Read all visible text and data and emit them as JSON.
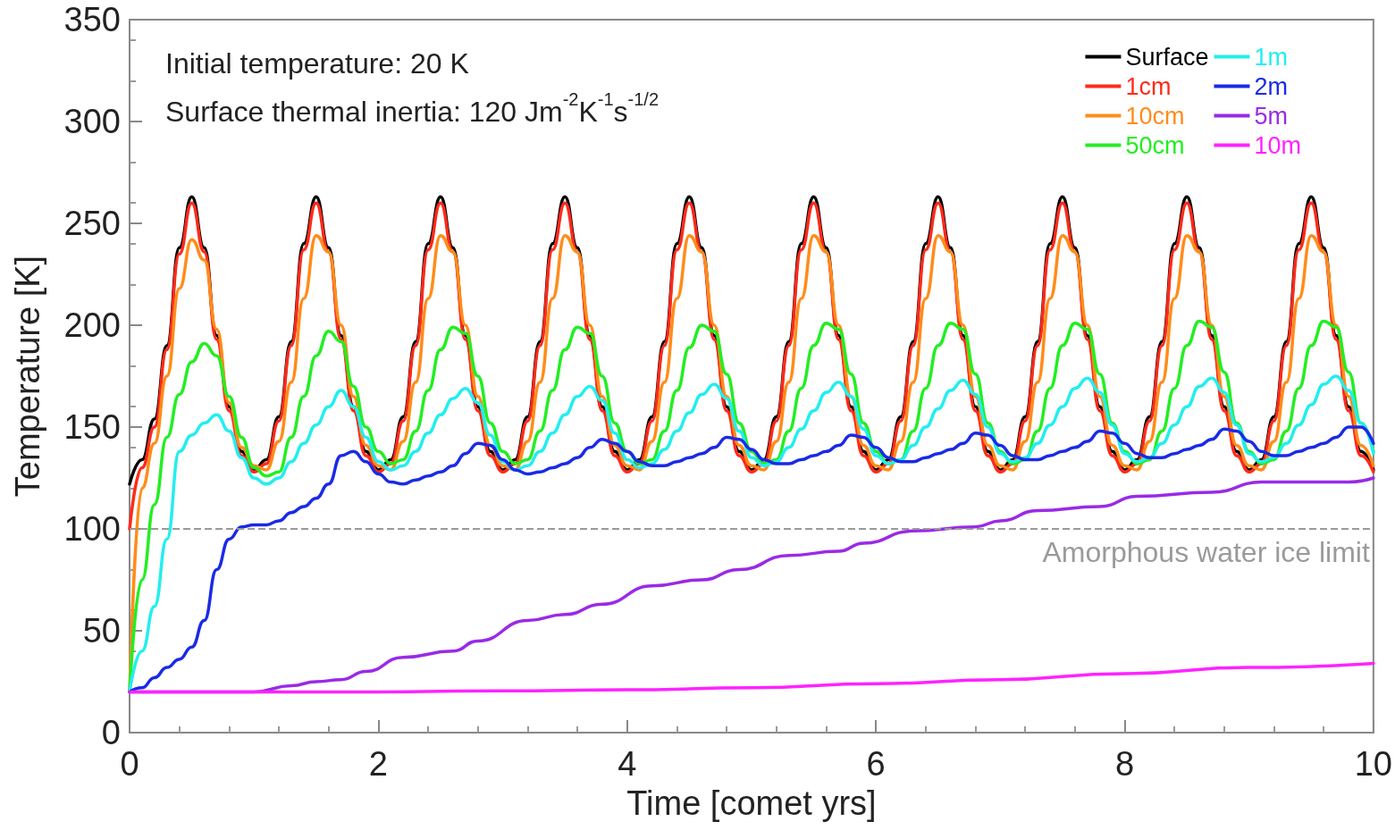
{
  "chart_data": {
    "type": "line",
    "xlabel": "Time [comet yrs]",
    "ylabel": "Temperature [K]",
    "annotations": [
      "Initial temperature: 20 K",
      "Surface thermal inertia: 120 Jm$^{-2}$K$^{-1}$s$^{-1/2}$"
    ],
    "x": [
      0,
      0.1,
      0.2,
      0.3,
      0.4,
      0.5,
      0.6,
      0.7,
      0.8,
      0.9,
      1,
      1.1,
      1.2,
      1.3,
      1.4,
      1.5,
      1.6,
      1.7,
      1.8,
      1.9,
      2,
      2.1,
      2.2,
      2.3,
      2.4,
      2.5,
      2.6,
      2.7,
      2.8,
      2.9,
      3,
      3.1,
      3.2,
      3.3,
      3.4,
      3.5,
      3.6,
      3.7,
      3.8,
      3.9,
      4,
      4.1,
      4.2,
      4.3,
      4.4,
      4.5,
      4.6,
      4.7,
      4.8,
      4.9,
      5,
      5.1,
      5.2,
      5.3,
      5.4,
      5.5,
      5.6,
      5.7,
      5.8,
      5.9,
      6,
      6.1,
      6.2,
      6.3,
      6.4,
      6.5,
      6.6,
      6.7,
      6.8,
      6.9,
      7,
      7.1,
      7.2,
      7.3,
      7.4,
      7.5,
      7.6,
      7.7,
      7.8,
      7.9,
      8,
      8.1,
      8.2,
      8.3,
      8.4,
      8.5,
      8.6,
      8.7,
      8.8,
      8.9,
      9,
      9.1,
      9.2,
      9.3,
      9.4,
      9.5,
      9.6,
      9.7,
      9.8,
      9.9,
      10
    ],
    "series": [
      {
        "name": "Surface",
        "color": "#000000",
        "values": [
          122,
          134,
          154,
          190,
          238,
          263,
          238,
          195,
          160,
          138,
          129,
          134,
          155,
          192,
          240,
          263,
          238,
          195,
          160,
          138,
          129,
          134,
          155,
          192,
          240,
          263,
          238,
          195,
          160,
          138,
          129,
          134,
          155,
          192,
          240,
          263,
          238,
          195,
          160,
          138,
          129,
          134,
          155,
          192,
          240,
          263,
          238,
          195,
          160,
          138,
          129,
          134,
          155,
          192,
          240,
          263,
          238,
          195,
          160,
          138,
          129,
          134,
          155,
          192,
          240,
          263,
          238,
          195,
          160,
          138,
          129,
          134,
          155,
          192,
          240,
          263,
          238,
          195,
          160,
          138,
          129,
          134,
          155,
          192,
          240,
          263,
          238,
          195,
          160,
          138,
          129,
          134,
          155,
          192,
          240,
          263,
          238,
          195,
          160,
          138,
          129
        ]
      },
      {
        "name": "1cm",
        "color": "#ff2a1a",
        "values": [
          100,
          130,
          150,
          188,
          235,
          260,
          236,
          193,
          158,
          136,
          128,
          132,
          153,
          190,
          237,
          260,
          236,
          193,
          158,
          136,
          128,
          132,
          153,
          190,
          237,
          260,
          236,
          193,
          158,
          136,
          128,
          132,
          153,
          190,
          237,
          260,
          236,
          193,
          158,
          136,
          128,
          132,
          153,
          190,
          237,
          260,
          236,
          193,
          158,
          136,
          128,
          132,
          153,
          190,
          237,
          260,
          236,
          193,
          158,
          136,
          128,
          132,
          153,
          190,
          237,
          260,
          236,
          193,
          158,
          136,
          128,
          132,
          153,
          190,
          237,
          260,
          236,
          193,
          158,
          136,
          128,
          132,
          153,
          190,
          237,
          260,
          236,
          193,
          158,
          136,
          128,
          132,
          153,
          190,
          237,
          260,
          236,
          193,
          158,
          136,
          128
        ]
      },
      {
        "name": "10cm",
        "color": "#ff8c1a",
        "values": [
          20,
          120,
          142,
          175,
          218,
          242,
          232,
          198,
          162,
          140,
          131,
          129,
          143,
          172,
          213,
          244,
          236,
          200,
          165,
          141,
          131,
          129,
          143,
          172,
          213,
          244,
          236,
          200,
          165,
          141,
          131,
          129,
          143,
          172,
          213,
          244,
          236,
          200,
          165,
          141,
          131,
          129,
          143,
          172,
          213,
          244,
          236,
          200,
          165,
          141,
          131,
          129,
          143,
          172,
          213,
          244,
          236,
          200,
          165,
          141,
          131,
          129,
          143,
          172,
          213,
          244,
          236,
          200,
          165,
          141,
          131,
          129,
          143,
          172,
          213,
          244,
          236,
          200,
          165,
          141,
          131,
          129,
          143,
          172,
          213,
          244,
          236,
          200,
          165,
          141,
          131,
          129,
          143,
          172,
          213,
          244,
          236,
          200,
          165,
          141,
          131
        ]
      },
      {
        "name": "50cm",
        "color": "#22ee22",
        "values": [
          20,
          75,
          112,
          145,
          166,
          182,
          191,
          185,
          165,
          145,
          130,
          126,
          128,
          145,
          165,
          185,
          197,
          192,
          170,
          150,
          138,
          132,
          134,
          148,
          168,
          188,
          199,
          196,
          175,
          152,
          138,
          132,
          134,
          148,
          168,
          188,
          199,
          196,
          175,
          152,
          138,
          132,
          134,
          148,
          168,
          189,
          200,
          197,
          176,
          152,
          138,
          132,
          134,
          148,
          169,
          190,
          201,
          198,
          176,
          152,
          138,
          132,
          134,
          148,
          169,
          190,
          201,
          198,
          176,
          152,
          138,
          132,
          134,
          148,
          169,
          190,
          201,
          198,
          176,
          152,
          138,
          132,
          134,
          148,
          169,
          190,
          202,
          199,
          177,
          152,
          138,
          132,
          134,
          148,
          169,
          190,
          202,
          199,
          177,
          152,
          138
        ]
      },
      {
        "name": "1m",
        "color": "#22eeee",
        "values": [
          20,
          40,
          62,
          95,
          138,
          146,
          152,
          156,
          148,
          135,
          125,
          122,
          125,
          133,
          142,
          151,
          160,
          168,
          160,
          145,
          133,
          129,
          131,
          138,
          147,
          156,
          164,
          169,
          162,
          146,
          133,
          129,
          131,
          138,
          147,
          156,
          165,
          170,
          163,
          147,
          134,
          130,
          132,
          139,
          148,
          157,
          166,
          171,
          164,
          148,
          135,
          131,
          133,
          140,
          149,
          158,
          167,
          172,
          165,
          149,
          136,
          132,
          134,
          141,
          150,
          159,
          168,
          173,
          166,
          150,
          137,
          133,
          135,
          142,
          151,
          160,
          169,
          174,
          167,
          151,
          137,
          133,
          135,
          142,
          151,
          160,
          170,
          174,
          167,
          151,
          137,
          133,
          135,
          142,
          151,
          161,
          171,
          175,
          168,
          152,
          137
        ]
      },
      {
        "name": "2m",
        "color": "#1a2ae6",
        "values": [
          20,
          22,
          27,
          32,
          36,
          42,
          55,
          80,
          95,
          101,
          102,
          102,
          104,
          108,
          111,
          115,
          122,
          136,
          138,
          133,
          127,
          123,
          122,
          124,
          126,
          128,
          131,
          137,
          142,
          141,
          134,
          129,
          127,
          128,
          130,
          132,
          135,
          140,
          144,
          142,
          138,
          133,
          131,
          131,
          133,
          135,
          137,
          140,
          145,
          144,
          139,
          134,
          132,
          132,
          134,
          136,
          138,
          141,
          146,
          145,
          140,
          135,
          133,
          133,
          135,
          137,
          139,
          142,
          147,
          146,
          141,
          136,
          134,
          134,
          136,
          138,
          140,
          143,
          148,
          147,
          142,
          137,
          135,
          135,
          137,
          139,
          141,
          144,
          149,
          148,
          143,
          138,
          136,
          136,
          138,
          140,
          142,
          145,
          150,
          150,
          142
        ]
      },
      {
        "name": "5m",
        "color": "#9a2ae6",
        "x": [
          0,
          1,
          1.3,
          1.5,
          1.7,
          1.9,
          2.2,
          2.6,
          2.8,
          3.2,
          3.5,
          3.8,
          4.2,
          4.6,
          4.9,
          5.3,
          5.7,
          5.9,
          6.3,
          6.8,
          7,
          7.3,
          7.8,
          8.1,
          8.7,
          9.1,
          9.8,
          10
        ],
        "values": [
          20,
          20,
          23,
          25,
          26,
          30,
          37,
          40,
          45,
          55,
          58,
          63,
          72,
          75,
          80,
          87,
          89,
          93,
          99,
          101,
          104,
          109,
          111,
          116,
          118,
          123,
          123,
          125
        ]
      },
      {
        "name": "10m",
        "color": "#ff22ff",
        "x": [
          0,
          1,
          2,
          3,
          4,
          5,
          6,
          7,
          8,
          9,
          10
        ],
        "values": [
          20,
          20,
          20,
          20.5,
          21,
          22,
          24,
          26,
          29,
          32,
          34
        ]
      }
    ],
    "xlim": [
      0,
      10
    ],
    "xticks": [
      0,
      2,
      4,
      6,
      8,
      10
    ],
    "ylim": [
      0,
      350
    ],
    "yticks": [
      0,
      50,
      100,
      150,
      200,
      250,
      300,
      350
    ],
    "ref_lines": [
      {
        "axis": "y",
        "value": 100,
        "label": "Amorphous water ice limit",
        "color": "#9a9a9a",
        "line_style": "dashed"
      }
    ],
    "legend": "top right",
    "line_style": "solid",
    "marker": "none"
  }
}
